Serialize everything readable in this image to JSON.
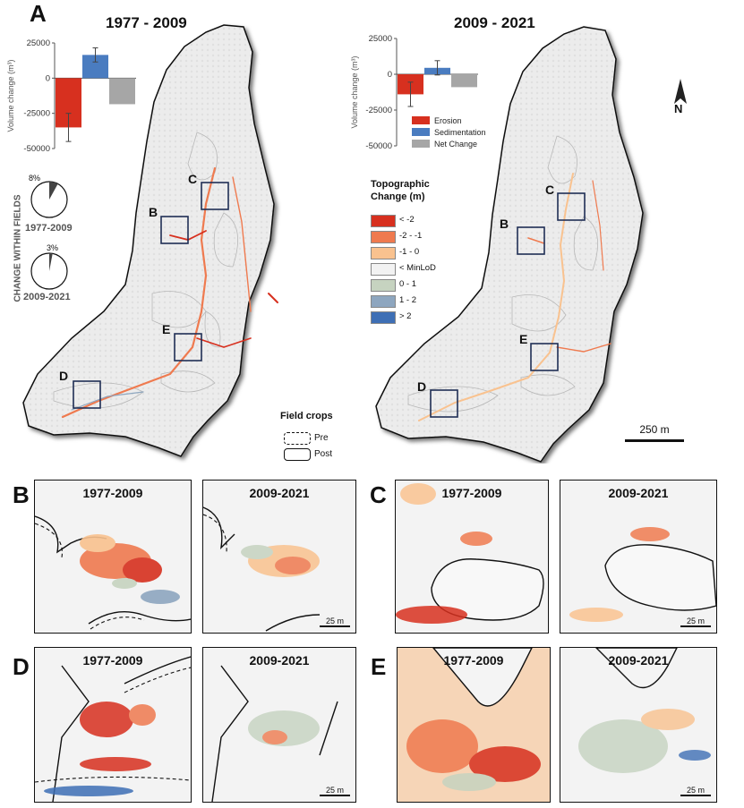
{
  "panel_a": {
    "letter": "A",
    "left_title": "1977 - 2009",
    "right_title": "2009 - 2021",
    "side_label": "CHANGE WITHIN FIELDS",
    "pie_left": {
      "label": "1977-2009",
      "percent_text": "8%",
      "value": 0.08
    },
    "pie_right": {
      "label": "2009-2021",
      "percent_text": "3%",
      "value": 0.03
    },
    "box_labels": [
      "C",
      "B",
      "E",
      "D"
    ],
    "north": "N",
    "scale": "250 m",
    "field_crops": {
      "title": "Field crops",
      "pre": "Pre",
      "post": "Post"
    }
  },
  "topo_legend": {
    "title_line1": "Topographic",
    "title_line2": "Change (m)",
    "items": [
      {
        "label": "< -2",
        "color": "#d7301f"
      },
      {
        "label": "-2 - -1",
        "color": "#ef7a4f"
      },
      {
        "label": "-1 - 0",
        "color": "#f9c28f"
      },
      {
        "label": "< MinLoD",
        "color": "#f2f2f2"
      },
      {
        "label": "0 - 1",
        "color": "#c6d3c0"
      },
      {
        "label": "1 - 2",
        "color": "#8ea6bf"
      },
      {
        "label": "> 2",
        "color": "#3e6fb5"
      }
    ]
  },
  "chart_data": [
    {
      "type": "bar",
      "title": "",
      "ylabel": "Volume change (m³)",
      "categories": [
        "Erosion",
        "Sedimentation",
        "Net Change"
      ],
      "values": [
        -35000,
        16500,
        -18500
      ],
      "errors": [
        10000,
        5000,
        0
      ],
      "colors": [
        "#d7301f",
        "#4a7cc0",
        "#a6a6a6"
      ],
      "yticks": [
        "25000",
        "0",
        "-25000",
        "-50000"
      ],
      "ylim": [
        -50000,
        25000
      ]
    },
    {
      "type": "bar",
      "title": "",
      "ylabel": "Volume change (m³)",
      "categories": [
        "Erosion",
        "Sedimentation",
        "Net Change"
      ],
      "values": [
        -14000,
        4500,
        -9000
      ],
      "errors": [
        8500,
        5000,
        0
      ],
      "colors": [
        "#d7301f",
        "#4a7cc0",
        "#a6a6a6"
      ],
      "yticks": [
        "25000",
        "0",
        "-25000",
        "-50000"
      ],
      "ylim": [
        -50000,
        25000
      ],
      "legend": [
        "Erosion",
        "Sedimentation",
        "Net Change"
      ]
    }
  ],
  "insets": {
    "B": {
      "letter": "B",
      "left_title": "1977-2009",
      "right_title": "2009-2021",
      "scale": "25 m"
    },
    "C": {
      "letter": "C",
      "left_title": "1977-2009",
      "right_title": "2009-2021",
      "scale": "25 m"
    },
    "D": {
      "letter": "D",
      "left_title": "1977-2009",
      "right_title": "2009-2021",
      "scale": "25 m"
    },
    "E": {
      "letter": "E",
      "left_title": "1977-2009",
      "right_title": "2009-2021",
      "scale": "25 m"
    }
  }
}
